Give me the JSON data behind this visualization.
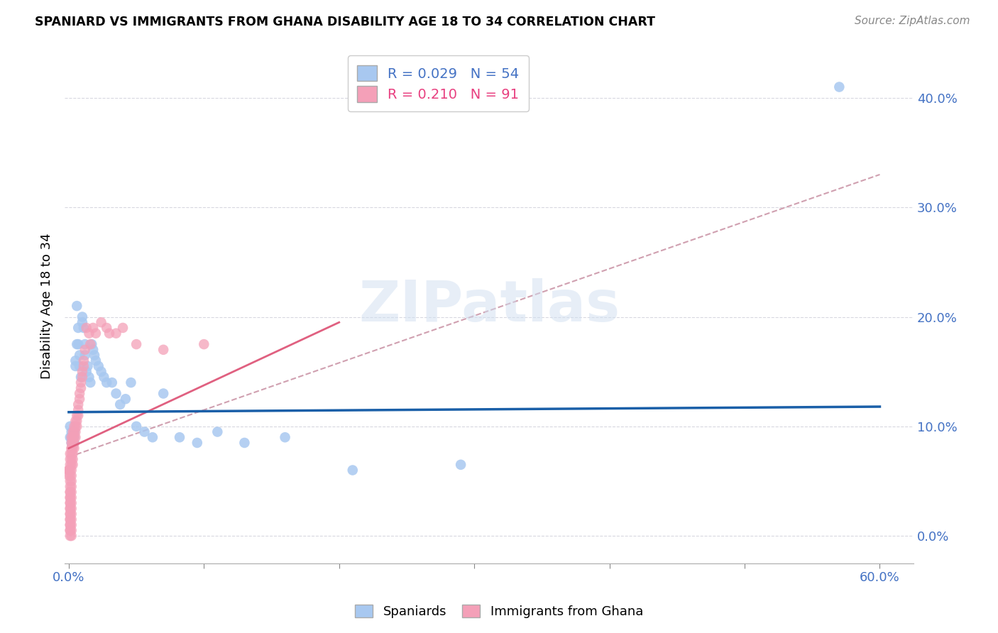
{
  "title": "SPANIARD VS IMMIGRANTS FROM GHANA DISABILITY AGE 18 TO 34 CORRELATION CHART",
  "source": "Source: ZipAtlas.com",
  "ylabel": "Disability Age 18 to 34",
  "xlim": [
    -0.003,
    0.625
  ],
  "ylim": [
    -0.025,
    0.445
  ],
  "ytick_vals": [
    0.0,
    0.1,
    0.2,
    0.3,
    0.4
  ],
  "ytick_labels": [
    "0.0%",
    "10.0%",
    "20.0%",
    "30.0%",
    "40.0%"
  ],
  "xtick_major": [
    0.0,
    0.1,
    0.2,
    0.3,
    0.4,
    0.5,
    0.6
  ],
  "xtick_left_label": "0.0%",
  "xtick_right_label": "60.0%",
  "spaniards_R": 0.029,
  "spaniards_N": 54,
  "ghana_R": 0.21,
  "ghana_N": 91,
  "spaniard_color": "#a8c8f0",
  "ghana_color": "#f4a0b8",
  "spaniard_line_color": "#1a5fa8",
  "ghana_line_color": "#e06080",
  "ghana_trend_color": "#d0a0b0",
  "watermark_color": "#d0dff0",
  "spaniards_x": [
    0.001,
    0.001,
    0.002,
    0.002,
    0.002,
    0.003,
    0.003,
    0.003,
    0.004,
    0.004,
    0.004,
    0.005,
    0.005,
    0.006,
    0.006,
    0.007,
    0.007,
    0.008,
    0.008,
    0.009,
    0.01,
    0.01,
    0.011,
    0.012,
    0.012,
    0.013,
    0.014,
    0.015,
    0.016,
    0.017,
    0.018,
    0.019,
    0.02,
    0.022,
    0.024,
    0.026,
    0.028,
    0.032,
    0.035,
    0.038,
    0.042,
    0.046,
    0.05,
    0.056,
    0.062,
    0.07,
    0.082,
    0.095,
    0.11,
    0.13,
    0.16,
    0.21,
    0.29,
    0.57
  ],
  "spaniards_y": [
    0.1,
    0.09,
    0.095,
    0.085,
    0.09,
    0.092,
    0.088,
    0.085,
    0.095,
    0.09,
    0.085,
    0.16,
    0.155,
    0.175,
    0.21,
    0.19,
    0.175,
    0.165,
    0.155,
    0.145,
    0.2,
    0.195,
    0.19,
    0.175,
    0.165,
    0.15,
    0.155,
    0.145,
    0.14,
    0.175,
    0.17,
    0.165,
    0.16,
    0.155,
    0.15,
    0.145,
    0.14,
    0.14,
    0.13,
    0.12,
    0.125,
    0.14,
    0.1,
    0.095,
    0.09,
    0.13,
    0.09,
    0.085,
    0.095,
    0.085,
    0.09,
    0.06,
    0.065,
    0.41
  ],
  "ghana_x": [
    0.0,
    0.0,
    0.0,
    0.001,
    0.001,
    0.001,
    0.001,
    0.001,
    0.001,
    0.001,
    0.001,
    0.001,
    0.001,
    0.001,
    0.001,
    0.001,
    0.001,
    0.001,
    0.001,
    0.001,
    0.001,
    0.001,
    0.001,
    0.001,
    0.001,
    0.001,
    0.001,
    0.002,
    0.002,
    0.002,
    0.002,
    0.002,
    0.002,
    0.002,
    0.002,
    0.002,
    0.002,
    0.002,
    0.002,
    0.002,
    0.002,
    0.002,
    0.002,
    0.002,
    0.002,
    0.002,
    0.002,
    0.003,
    0.003,
    0.003,
    0.003,
    0.003,
    0.003,
    0.003,
    0.004,
    0.004,
    0.004,
    0.004,
    0.004,
    0.005,
    0.005,
    0.005,
    0.005,
    0.006,
    0.006,
    0.006,
    0.007,
    0.007,
    0.007,
    0.008,
    0.008,
    0.009,
    0.009,
    0.01,
    0.01,
    0.011,
    0.011,
    0.012,
    0.013,
    0.015,
    0.016,
    0.018,
    0.02,
    0.024,
    0.028,
    0.03,
    0.035,
    0.04,
    0.05,
    0.07,
    0.1
  ],
  "ghana_y": [
    0.06,
    0.06,
    0.055,
    0.075,
    0.07,
    0.065,
    0.06,
    0.055,
    0.05,
    0.045,
    0.04,
    0.04,
    0.035,
    0.035,
    0.03,
    0.03,
    0.025,
    0.025,
    0.02,
    0.02,
    0.015,
    0.015,
    0.01,
    0.01,
    0.005,
    0.005,
    0.0,
    0.08,
    0.075,
    0.07,
    0.065,
    0.06,
    0.055,
    0.05,
    0.045,
    0.04,
    0.035,
    0.03,
    0.025,
    0.02,
    0.015,
    0.01,
    0.005,
    0.0,
    0.09,
    0.085,
    0.08,
    0.095,
    0.09,
    0.085,
    0.08,
    0.075,
    0.07,
    0.065,
    0.1,
    0.095,
    0.09,
    0.085,
    0.08,
    0.105,
    0.1,
    0.095,
    0.09,
    0.11,
    0.105,
    0.1,
    0.12,
    0.115,
    0.11,
    0.13,
    0.125,
    0.14,
    0.135,
    0.15,
    0.145,
    0.16,
    0.155,
    0.17,
    0.19,
    0.185,
    0.175,
    0.19,
    0.185,
    0.195,
    0.19,
    0.185,
    0.185,
    0.19,
    0.175,
    0.17,
    0.175
  ]
}
